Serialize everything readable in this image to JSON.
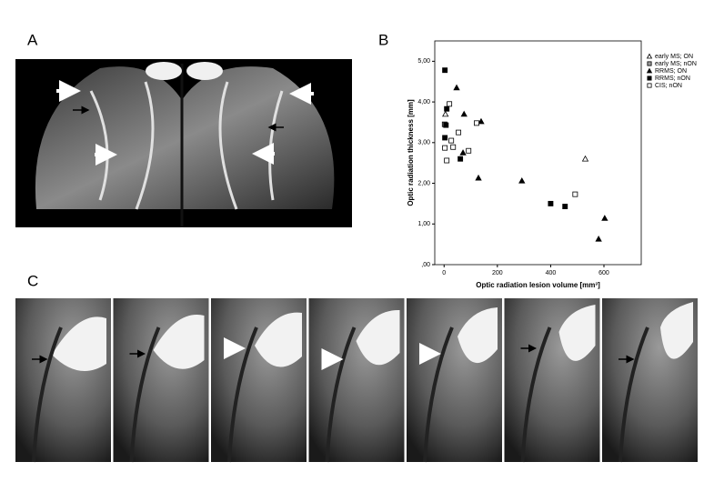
{
  "panels": [
    "A",
    "B",
    "C"
  ],
  "chart_data": {
    "type": "scatter",
    "xlabel": "Optic radiation lesion volume [mm³]",
    "ylabel": "Optic radiation thickness [mm]",
    "xlim": [
      -35,
      740
    ],
    "xticks": [
      0,
      200,
      400,
      600
    ],
    "ylim": [
      0,
      5.5
    ],
    "yticks": [
      {
        "value": 0,
        "label": ",00"
      },
      {
        "value": 1,
        "label": "1,00"
      },
      {
        "value": 2,
        "label": "2,00"
      },
      {
        "value": 3,
        "label": "3,00"
      },
      {
        "value": 4,
        "label": "4,00"
      },
      {
        "value": 5,
        "label": "5,00"
      }
    ],
    "series": [
      {
        "name": "early MS; ON",
        "marker": "triangle",
        "color": "#ffffff",
        "x": [
          5,
          530
        ],
        "values": [
          3.7,
          2.6
        ]
      },
      {
        "name": "early MS; nON",
        "marker": "square",
        "color": "#999999",
        "x": [
          2
        ],
        "values": [
          3.45
        ]
      },
      {
        "name": "RRMS; ON",
        "marker": "triangle",
        "color": "#000000",
        "x": [
          47,
          75,
          139,
          71,
          129,
          292,
          603,
          580
        ],
        "values": [
          4.35,
          3.7,
          3.52,
          2.75,
          2.13,
          2.06,
          1.14,
          0.63
        ]
      },
      {
        "name": "RRMS; nON",
        "marker": "square",
        "color": "#000000",
        "x": [
          3,
          10,
          7,
          3,
          61,
          400,
          454
        ],
        "values": [
          4.78,
          3.83,
          3.43,
          3.12,
          2.6,
          1.5,
          1.43
        ]
      },
      {
        "name": "CIS; nON",
        "marker": "square",
        "color": "#ffffff",
        "x": [
          20,
          54,
          27,
          3,
          34,
          10,
          92,
          122,
          492
        ],
        "values": [
          3.95,
          3.25,
          3.05,
          2.87,
          2.89,
          2.56,
          2.8,
          3.48,
          1.73
        ]
      }
    ]
  }
}
